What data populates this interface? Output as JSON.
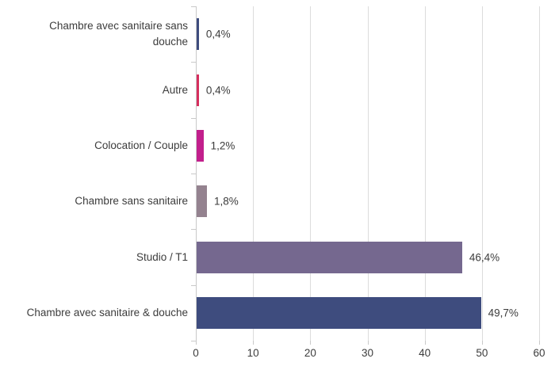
{
  "chart_data": {
    "type": "bar",
    "orientation": "horizontal",
    "title": "",
    "xlabel": "",
    "ylabel": "",
    "categories": [
      "Chambre avec sanitaire sans douche",
      "Autre",
      "Colocation / Couple",
      "Chambre sans sanitaire",
      "Studio / T1",
      "Chambre avec sanitaire & douche"
    ],
    "values": [
      0.4,
      0.4,
      1.2,
      1.8,
      46.4,
      49.7
    ],
    "value_labels": [
      "0,4%",
      "0,4%",
      "1,2%",
      "1,8%",
      "46,4%",
      "49,7%"
    ],
    "bar_colors": [
      "#3E4C7E",
      "#D62E5E",
      "#C21F8C",
      "#94828F",
      "#75688F",
      "#3E4C7E"
    ],
    "xlim": [
      0,
      60
    ],
    "x_ticks": [
      0,
      10,
      20,
      30,
      40,
      50,
      60
    ],
    "x_tick_labels": [
      "0",
      "10",
      "20",
      "30",
      "40",
      "50",
      "60"
    ],
    "grid": true,
    "legend": "none",
    "colors": {
      "gridline": "#DCDCDC",
      "axis_line": "#C9C9C9",
      "text": "#3C3C3C",
      "background": "#FFFFFF"
    }
  }
}
